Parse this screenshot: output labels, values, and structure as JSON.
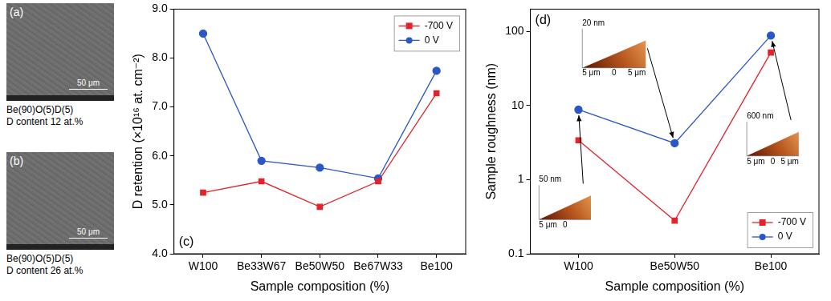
{
  "images": [
    {
      "letter": "(a)",
      "scale_bar": "50 μm",
      "caption": [
        "Be(90)O(5)D(5)",
        "D content 12 at.%"
      ]
    },
    {
      "letter": "(b)",
      "scale_bar": "50 μm",
      "caption": [
        "Be(90)O(5)D(5)",
        "D content 26 at.%"
      ]
    }
  ],
  "chart_data": [
    {
      "type": "line",
      "panel": "(c)",
      "x_label": "Sample composition (%)",
      "y_label": "D retention (×10¹⁶ at. cm⁻²)",
      "categories": [
        "W100",
        "Be33W67",
        "Be50W50",
        "Be67W33",
        "Be100"
      ],
      "series": [
        {
          "name": "-700 V",
          "color": "#e3232b",
          "marker": "square",
          "values": [
            5.25,
            5.48,
            4.96,
            5.48,
            7.28
          ]
        },
        {
          "name": "0 V",
          "color": "#2a56c6",
          "marker": "circle",
          "values": [
            8.5,
            5.9,
            5.76,
            5.54,
            7.74
          ]
        }
      ],
      "ylim": [
        4,
        9
      ],
      "yticks": [
        {
          "value": 4,
          "label": "4.0"
        },
        {
          "value": 5,
          "label": "5.0"
        },
        {
          "value": 6,
          "label": "6.0"
        },
        {
          "value": 7,
          "label": "7.0"
        },
        {
          "value": 8,
          "label": "8.0"
        },
        {
          "value": 9,
          "label": "9.0"
        }
      ],
      "grid": false,
      "legend": "upper right"
    },
    {
      "type": "line",
      "panel": "(d)",
      "x_label": "Sample composition (%)",
      "y_label": "Sample roughness (nm)",
      "categories": [
        "W100",
        "Be50W50",
        "Be100"
      ],
      "series": [
        {
          "name": "-700 V",
          "color": "#e3232b",
          "marker": "square",
          "values": [
            3.4,
            0.28,
            52
          ]
        },
        {
          "name": "0 V",
          "color": "#2a56c6",
          "marker": "circle",
          "values": [
            8.8,
            3.1,
            88
          ]
        }
      ],
      "log": "y",
      "ylim": [
        0.1,
        200
      ],
      "yticks": [
        0.1,
        1,
        10,
        100
      ],
      "grid": false,
      "legend": "lower right",
      "insets": [
        {
          "category": "W100",
          "series": "0 V",
          "labels": [
            "50 nm",
            "5 μm",
            "0"
          ]
        },
        {
          "category": "Be50W50",
          "series": "0 V",
          "labels": [
            "20 nm",
            "5 μm",
            "0",
            "5 μm"
          ]
        },
        {
          "category": "Be100",
          "series": "0 V",
          "labels": [
            "600 nm",
            "5 μm",
            "0",
            "5 μm"
          ]
        }
      ]
    }
  ]
}
